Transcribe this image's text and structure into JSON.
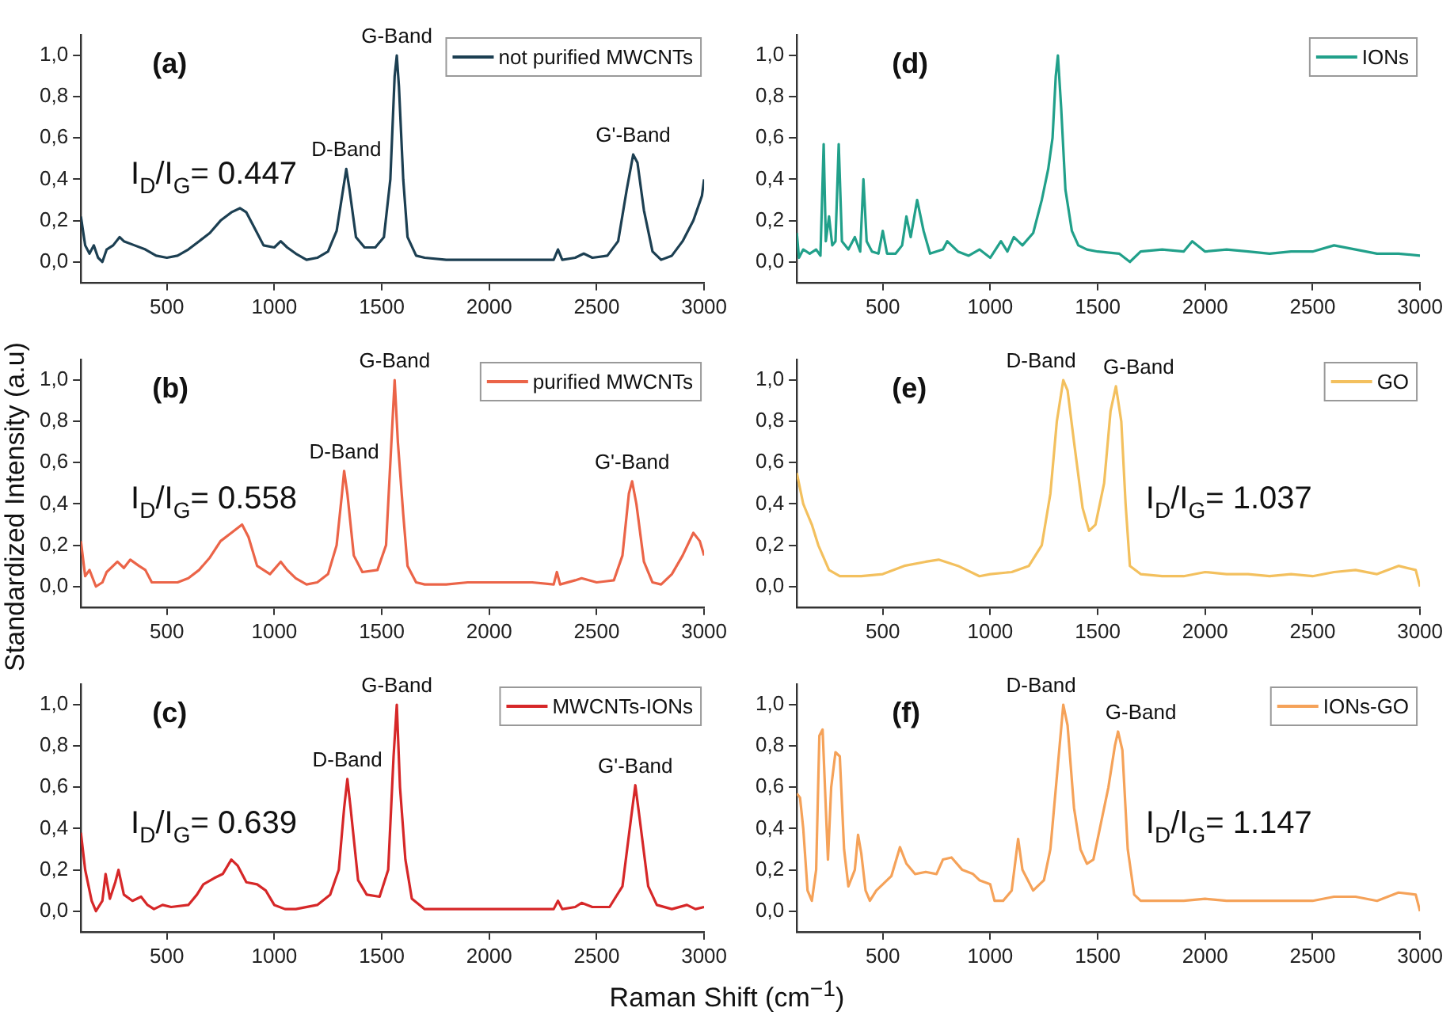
{
  "chart_data": [
    {
      "type": "line",
      "annotations": [
        "(a)",
        "I$_{D}$/I$_{G}$= 0.447",
        {
          "text": "D-Band",
          "x": 1335,
          "y": 0.45
        },
        {
          "text": "G-Band",
          "x": 1570,
          "y": 1.0
        },
        {
          "text": "G'-Band",
          "x": 2670,
          "y": 0.52
        }
      ],
      "x": [
        100,
        120,
        140,
        160,
        180,
        200,
        220,
        250,
        280,
        300,
        350,
        400,
        450,
        500,
        550,
        600,
        650,
        700,
        750,
        800,
        840,
        870,
        900,
        950,
        1000,
        1030,
        1060,
        1100,
        1150,
        1200,
        1250,
        1290,
        1320,
        1335,
        1350,
        1380,
        1420,
        1470,
        1510,
        1540,
        1560,
        1570,
        1580,
        1600,
        1620,
        1660,
        1700,
        1800,
        1900,
        2000,
        2100,
        2200,
        2300,
        2320,
        2340,
        2400,
        2440,
        2480,
        2550,
        2600,
        2640,
        2670,
        2690,
        2720,
        2760,
        2800,
        2850,
        2900,
        2950,
        2990,
        3000
      ],
      "series": [
        {
          "name": "not purified MWCNTs",
          "color": "#1c3f52",
          "values": [
            0.22,
            0.08,
            0.04,
            0.08,
            0.02,
            0.0,
            0.06,
            0.08,
            0.12,
            0.1,
            0.08,
            0.06,
            0.03,
            0.02,
            0.03,
            0.06,
            0.1,
            0.14,
            0.2,
            0.24,
            0.26,
            0.24,
            0.18,
            0.08,
            0.07,
            0.1,
            0.07,
            0.04,
            0.01,
            0.02,
            0.05,
            0.15,
            0.35,
            0.45,
            0.35,
            0.12,
            0.07,
            0.07,
            0.12,
            0.4,
            0.9,
            1.0,
            0.85,
            0.4,
            0.12,
            0.03,
            0.02,
            0.01,
            0.01,
            0.01,
            0.01,
            0.01,
            0.01,
            0.06,
            0.01,
            0.02,
            0.04,
            0.02,
            0.03,
            0.1,
            0.35,
            0.52,
            0.48,
            0.25,
            0.05,
            0.01,
            0.03,
            0.1,
            0.2,
            0.32,
            0.4
          ]
        }
      ],
      "xlim": [
        100,
        3000
      ],
      "ylim": [
        -0.1,
        1.1
      ],
      "xticks": [
        500,
        1000,
        1500,
        2000,
        2500,
        3000
      ],
      "yticks": [
        {
          "value": 0,
          "label": "0,0"
        },
        {
          "value": 0.2,
          "label": "0,2"
        },
        {
          "value": 0.4,
          "label": "0,4"
        },
        {
          "value": 0.6,
          "label": "0,6"
        },
        {
          "value": 0.8,
          "label": "0,8"
        },
        {
          "value": 1,
          "label": "1,0"
        }
      ],
      "legend": "top right"
    },
    {
      "type": "line",
      "ylabel": "Standardized Intensity (a.u)",
      "annotations": [
        "(b)",
        "I$_{D}$/I$_{G}$= 0.558",
        {
          "text": "D-Band",
          "x": 1325,
          "y": 0.56
        },
        {
          "text": "G-Band",
          "x": 1560,
          "y": 1.0
        },
        {
          "text": "G'-Band",
          "x": 2665,
          "y": 0.51
        }
      ],
      "x": [
        100,
        120,
        140,
        170,
        200,
        220,
        270,
        300,
        330,
        370,
        400,
        430,
        500,
        550,
        600,
        650,
        700,
        750,
        800,
        850,
        880,
        920,
        980,
        1030,
        1060,
        1100,
        1150,
        1200,
        1250,
        1290,
        1315,
        1325,
        1340,
        1370,
        1410,
        1480,
        1520,
        1545,
        1560,
        1575,
        1600,
        1620,
        1660,
        1700,
        1800,
        1900,
        2000,
        2100,
        2200,
        2300,
        2315,
        2330,
        2400,
        2430,
        2500,
        2580,
        2620,
        2650,
        2665,
        2685,
        2720,
        2760,
        2800,
        2850,
        2900,
        2950,
        2980,
        3000
      ],
      "series": [
        {
          "name": "purified MWCNTs",
          "color": "#eb6448",
          "values": [
            0.22,
            0.05,
            0.08,
            0.0,
            0.02,
            0.07,
            0.12,
            0.09,
            0.13,
            0.1,
            0.08,
            0.02,
            0.02,
            0.02,
            0.04,
            0.08,
            0.14,
            0.22,
            0.26,
            0.3,
            0.24,
            0.1,
            0.06,
            0.12,
            0.08,
            0.04,
            0.01,
            0.02,
            0.06,
            0.2,
            0.45,
            0.56,
            0.45,
            0.15,
            0.07,
            0.08,
            0.2,
            0.7,
            1.0,
            0.7,
            0.35,
            0.1,
            0.02,
            0.01,
            0.01,
            0.02,
            0.02,
            0.02,
            0.02,
            0.01,
            0.07,
            0.01,
            0.03,
            0.04,
            0.02,
            0.03,
            0.15,
            0.45,
            0.51,
            0.4,
            0.12,
            0.02,
            0.01,
            0.06,
            0.15,
            0.26,
            0.22,
            0.15
          ]
        }
      ],
      "xlim": [
        100,
        3000
      ],
      "ylim": [
        -0.1,
        1.1
      ],
      "xticks": [
        500,
        1000,
        1500,
        2000,
        2500,
        3000
      ],
      "yticks": [
        {
          "value": 0,
          "label": "0,0"
        },
        {
          "value": 0.2,
          "label": "0,2"
        },
        {
          "value": 0.4,
          "label": "0,4"
        },
        {
          "value": 0.6,
          "label": "0,6"
        },
        {
          "value": 0.8,
          "label": "0,8"
        },
        {
          "value": 1,
          "label": "1,0"
        }
      ],
      "legend": "top right"
    },
    {
      "type": "line",
      "xlabel": "Raman Shift (cm$^{−1}$)",
      "annotations": [
        "(c)",
        "I$_{D}$/I$_{G}$= 0.639",
        {
          "text": "D-Band",
          "x": 1340,
          "y": 0.64
        },
        {
          "text": "G-Band",
          "x": 1570,
          "y": 1.0
        },
        {
          "text": "G'-Band",
          "x": 2680,
          "y": 0.61
        }
      ],
      "x": [
        100,
        120,
        150,
        170,
        200,
        215,
        235,
        260,
        275,
        300,
        340,
        380,
        410,
        440,
        480,
        520,
        600,
        640,
        670,
        720,
        760,
        800,
        830,
        870,
        920,
        960,
        1000,
        1050,
        1100,
        1200,
        1260,
        1300,
        1325,
        1340,
        1355,
        1390,
        1430,
        1490,
        1530,
        1555,
        1570,
        1585,
        1610,
        1640,
        1700,
        1800,
        1900,
        2000,
        2100,
        2200,
        2300,
        2320,
        2340,
        2400,
        2430,
        2480,
        2560,
        2620,
        2660,
        2680,
        2700,
        2740,
        2780,
        2850,
        2920,
        2960,
        3000
      ],
      "series": [
        {
          "name": "MWCNTs-IONs",
          "color": "#d62728",
          "values": [
            0.38,
            0.2,
            0.05,
            0.0,
            0.05,
            0.18,
            0.06,
            0.14,
            0.2,
            0.08,
            0.05,
            0.07,
            0.03,
            0.01,
            0.03,
            0.02,
            0.03,
            0.08,
            0.13,
            0.16,
            0.18,
            0.25,
            0.22,
            0.14,
            0.13,
            0.1,
            0.03,
            0.01,
            0.01,
            0.03,
            0.08,
            0.2,
            0.5,
            0.64,
            0.5,
            0.15,
            0.08,
            0.07,
            0.2,
            0.75,
            1.0,
            0.6,
            0.25,
            0.06,
            0.01,
            0.01,
            0.01,
            0.01,
            0.01,
            0.01,
            0.01,
            0.05,
            0.01,
            0.02,
            0.04,
            0.02,
            0.02,
            0.12,
            0.45,
            0.61,
            0.45,
            0.12,
            0.03,
            0.01,
            0.03,
            0.01,
            0.02
          ]
        }
      ],
      "xlim": [
        100,
        3000
      ],
      "ylim": [
        -0.1,
        1.1
      ],
      "xticks": [
        500,
        1000,
        1500,
        2000,
        2500,
        3000
      ],
      "yticks": [
        {
          "value": 0,
          "label": "0,0"
        },
        {
          "value": 0.2,
          "label": "0,2"
        },
        {
          "value": 0.4,
          "label": "0,4"
        },
        {
          "value": 0.6,
          "label": "0,6"
        },
        {
          "value": 0.8,
          "label": "0,8"
        },
        {
          "value": 1,
          "label": "1,0"
        }
      ],
      "legend": "top right"
    },
    {
      "type": "line",
      "annotations": [
        "(d)"
      ],
      "x": [
        100,
        110,
        130,
        160,
        190,
        210,
        225,
        235,
        250,
        265,
        280,
        295,
        310,
        340,
        370,
        395,
        410,
        425,
        450,
        480,
        500,
        520,
        560,
        590,
        610,
        630,
        660,
        690,
        720,
        780,
        800,
        850,
        900,
        950,
        1000,
        1050,
        1080,
        1110,
        1150,
        1200,
        1240,
        1270,
        1290,
        1305,
        1315,
        1330,
        1350,
        1380,
        1410,
        1450,
        1500,
        1600,
        1650,
        1700,
        1800,
        1900,
        1940,
        2000,
        2100,
        2200,
        2300,
        2400,
        2500,
        2600,
        2700,
        2800,
        2900,
        3000
      ],
      "series": [
        {
          "name": "IONs",
          "color": "#21a08a",
          "values": [
            0.14,
            0.02,
            0.06,
            0.04,
            0.06,
            0.03,
            0.57,
            0.1,
            0.22,
            0.08,
            0.1,
            0.57,
            0.1,
            0.06,
            0.12,
            0.05,
            0.4,
            0.1,
            0.05,
            0.04,
            0.15,
            0.04,
            0.04,
            0.08,
            0.22,
            0.12,
            0.3,
            0.15,
            0.04,
            0.06,
            0.1,
            0.05,
            0.03,
            0.06,
            0.02,
            0.1,
            0.05,
            0.12,
            0.08,
            0.14,
            0.3,
            0.45,
            0.6,
            0.9,
            1.0,
            0.75,
            0.35,
            0.15,
            0.08,
            0.06,
            0.05,
            0.04,
            0.0,
            0.05,
            0.06,
            0.05,
            0.1,
            0.05,
            0.06,
            0.05,
            0.04,
            0.05,
            0.05,
            0.08,
            0.06,
            0.04,
            0.04,
            0.03
          ]
        }
      ],
      "xlim": [
        100,
        3000
      ],
      "ylim": [
        -0.1,
        1.1
      ],
      "xticks": [
        500,
        1000,
        1500,
        2000,
        2500,
        3000
      ],
      "yticks": [
        {
          "value": 0,
          "label": "0,0"
        },
        {
          "value": 0.2,
          "label": "0,2"
        },
        {
          "value": 0.4,
          "label": "0,4"
        },
        {
          "value": 0.6,
          "label": "0,6"
        },
        {
          "value": 0.8,
          "label": "0,8"
        },
        {
          "value": 1,
          "label": "1,0"
        }
      ],
      "legend": "top right"
    },
    {
      "type": "line",
      "annotations": [
        "(e)",
        "I$_{D}$/I$_{G}$= 1.037",
        {
          "text": "D-Band",
          "x": 1340,
          "y": 1.0
        },
        {
          "text": "G-Band",
          "x": 1585,
          "y": 0.97
        }
      ],
      "x": [
        100,
        130,
        170,
        200,
        250,
        300,
        400,
        500,
        600,
        700,
        760,
        850,
        950,
        1000,
        1100,
        1180,
        1240,
        1280,
        1310,
        1340,
        1360,
        1390,
        1430,
        1460,
        1490,
        1530,
        1560,
        1585,
        1610,
        1630,
        1650,
        1700,
        1800,
        1900,
        2000,
        2100,
        2200,
        2300,
        2400,
        2500,
        2600,
        2700,
        2800,
        2900,
        2980,
        3000
      ],
      "series": [
        {
          "name": "GO",
          "color": "#f3c05e",
          "values": [
            0.55,
            0.4,
            0.3,
            0.2,
            0.08,
            0.05,
            0.05,
            0.06,
            0.1,
            0.12,
            0.13,
            0.1,
            0.05,
            0.06,
            0.07,
            0.1,
            0.2,
            0.45,
            0.8,
            1.0,
            0.95,
            0.7,
            0.38,
            0.27,
            0.3,
            0.5,
            0.85,
            0.97,
            0.8,
            0.4,
            0.1,
            0.06,
            0.05,
            0.05,
            0.07,
            0.06,
            0.06,
            0.05,
            0.06,
            0.05,
            0.07,
            0.08,
            0.06,
            0.1,
            0.08,
            0.0
          ]
        }
      ],
      "xlim": [
        100,
        3000
      ],
      "ylim": [
        -0.1,
        1.1
      ],
      "xticks": [
        500,
        1000,
        1500,
        2000,
        2500,
        3000
      ],
      "yticks": [
        {
          "value": 0,
          "label": "0,0"
        },
        {
          "value": 0.2,
          "label": "0,2"
        },
        {
          "value": 0.4,
          "label": "0,4"
        },
        {
          "value": 0.6,
          "label": "0,6"
        },
        {
          "value": 0.8,
          "label": "0,8"
        },
        {
          "value": 1,
          "label": "1,0"
        }
      ],
      "legend": "top right"
    },
    {
      "type": "line",
      "annotations": [
        "(f)",
        "I$_{D}$/I$_{G}$= 1.147",
        {
          "text": "D-Band",
          "x": 1340,
          "y": 1.0
        },
        {
          "text": "G-Band",
          "x": 1595,
          "y": 0.87
        }
      ],
      "x": [
        100,
        115,
        130,
        150,
        170,
        190,
        205,
        220,
        235,
        245,
        260,
        280,
        300,
        320,
        340,
        370,
        385,
        400,
        420,
        440,
        470,
        500,
        540,
        580,
        610,
        650,
        700,
        750,
        780,
        820,
        870,
        920,
        950,
        1000,
        1020,
        1060,
        1100,
        1130,
        1150,
        1200,
        1250,
        1280,
        1310,
        1340,
        1360,
        1390,
        1420,
        1450,
        1480,
        1510,
        1550,
        1580,
        1595,
        1615,
        1640,
        1670,
        1700,
        1800,
        1900,
        2000,
        2100,
        2200,
        2300,
        2400,
        2500,
        2600,
        2700,
        2800,
        2900,
        2980,
        3000
      ],
      "series": [
        {
          "name": "IONs-GO",
          "color": "#f5a259",
          "values": [
            0.57,
            0.55,
            0.4,
            0.1,
            0.05,
            0.2,
            0.85,
            0.88,
            0.5,
            0.25,
            0.6,
            0.77,
            0.75,
            0.3,
            0.12,
            0.2,
            0.37,
            0.28,
            0.1,
            0.05,
            0.1,
            0.13,
            0.17,
            0.31,
            0.23,
            0.18,
            0.19,
            0.18,
            0.25,
            0.26,
            0.2,
            0.18,
            0.15,
            0.13,
            0.05,
            0.05,
            0.1,
            0.35,
            0.2,
            0.1,
            0.15,
            0.3,
            0.65,
            1.0,
            0.9,
            0.5,
            0.3,
            0.23,
            0.25,
            0.4,
            0.6,
            0.8,
            0.87,
            0.78,
            0.3,
            0.08,
            0.05,
            0.05,
            0.05,
            0.06,
            0.05,
            0.05,
            0.05,
            0.05,
            0.05,
            0.07,
            0.07,
            0.05,
            0.09,
            0.08,
            0.0
          ]
        }
      ],
      "xlim": [
        100,
        3000
      ],
      "ylim": [
        -0.1,
        1.1
      ],
      "xticks": [
        500,
        1000,
        1500,
        2000,
        2500,
        3000
      ],
      "yticks": [
        {
          "value": 0,
          "label": "0,0"
        },
        {
          "value": 0.2,
          "label": "0,2"
        },
        {
          "value": 0.4,
          "label": "0,4"
        },
        {
          "value": 0.6,
          "label": "0,6"
        },
        {
          "value": 0.8,
          "label": "0,8"
        },
        {
          "value": 1,
          "label": "1,0"
        }
      ],
      "legend": "top right"
    }
  ]
}
